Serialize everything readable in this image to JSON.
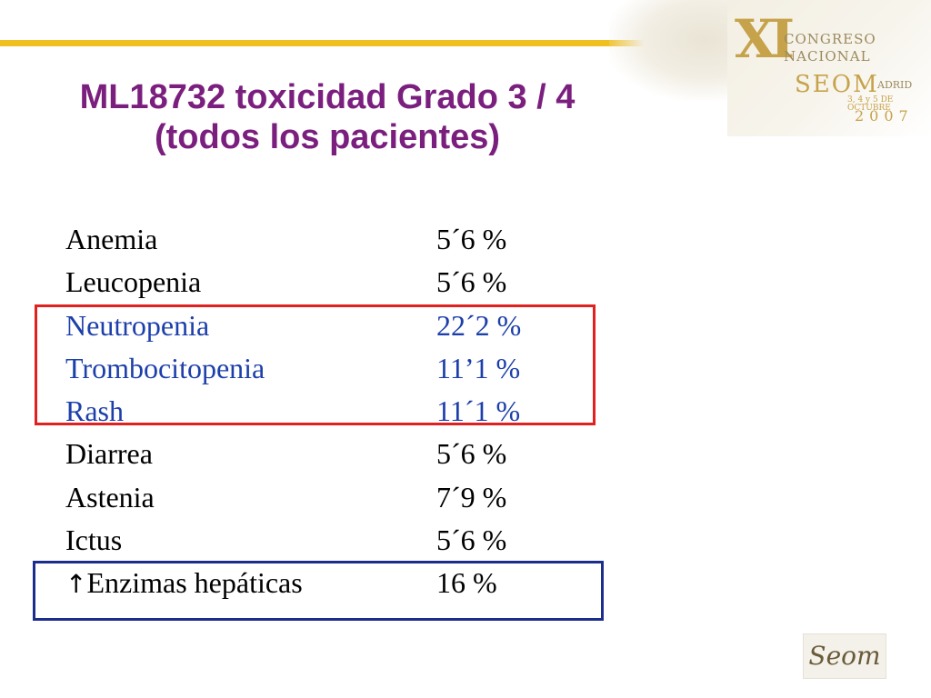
{
  "slide": {
    "title_line1": "ML18732 toxicidad Grado 3 / 4",
    "title_line2": "(todos los pacientes)"
  },
  "congress_logo": {
    "roman": "XI",
    "line1": "CONGRESO",
    "line2": "NACIONAL",
    "org": "SEOM",
    "city": "ADRID",
    "dates": "3, 4 y 5 DE OCTUBRE",
    "year": "2007"
  },
  "footer_logo": {
    "text": "Seom"
  },
  "toxicities": [
    {
      "name": "Anemia",
      "value": "5´6 %",
      "highlight": "none"
    },
    {
      "name": "Leucopenia",
      "value": "5´6 %",
      "highlight": "none"
    },
    {
      "name": "Neutropenia",
      "value": "22´2 %",
      "highlight": "red"
    },
    {
      "name": "Trombocitopenia",
      "value": "11’1 %",
      "highlight": "red"
    },
    {
      "name": "Rash",
      "value": "11´1 %",
      "highlight": "red"
    },
    {
      "name": "Diarrea",
      "value": "5´6 %",
      "highlight": "none"
    },
    {
      "name": "Astenia",
      "value": "7´9 %",
      "highlight": "none"
    },
    {
      "name": "Ictus",
      "value": "5´6 %",
      "highlight": "none"
    },
    {
      "name": "Enzimas hepáticas",
      "value": "16 %",
      "highlight": "blue",
      "prefix_symbol": "↑"
    }
  ],
  "colors": {
    "title": "#7b1f7f",
    "highlighted_text": "#1c3faa",
    "red_box": "#e12020",
    "blue_box": "#1c2e8c",
    "top_bar": "#f0c020"
  }
}
